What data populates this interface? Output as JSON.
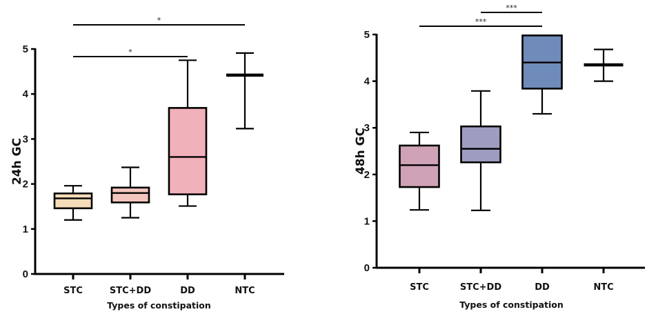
{
  "chart_data": [
    {
      "type": "box",
      "title": "",
      "xlabel": "Types of constipation",
      "ylabel": "24h GC",
      "ylim": [
        0,
        5
      ],
      "yticks": [
        "0",
        "1",
        "2",
        "3",
        "4",
        "5"
      ],
      "grid": false,
      "categories": [
        "STC",
        "STC+DD",
        "DD",
        "NTC"
      ],
      "boxes": [
        {
          "category": "STC",
          "min": 1.2,
          "q1": 1.46,
          "median": 1.68,
          "q3": 1.79,
          "max": 1.96,
          "color": "#f5dcb8"
        },
        {
          "category": "STC+DD",
          "min": 1.25,
          "q1": 1.59,
          "median": 1.8,
          "q3": 1.92,
          "max": 2.37,
          "color": "#f3c6bd"
        },
        {
          "category": "DD",
          "min": 1.51,
          "q1": 1.77,
          "median": 2.6,
          "q3": 3.69,
          "max": 4.75,
          "color": "#f1b1ba"
        },
        {
          "category": "NTC",
          "min": 3.23,
          "q1": 4.42,
          "median": 4.42,
          "q3": 4.42,
          "max": 4.91,
          "color": "#ffffff"
        }
      ],
      "significance": [
        {
          "from": "STC",
          "to": "DD",
          "label": "*",
          "level": 1
        },
        {
          "from": "STC",
          "to": "NTC",
          "label": "*",
          "level": 2
        }
      ]
    },
    {
      "type": "box",
      "title": "",
      "xlabel": "Types of constipation",
      "ylabel": "48h GC",
      "ylim": [
        0,
        5
      ],
      "yticks": [
        "0",
        "1",
        "2",
        "3",
        "4",
        "5"
      ],
      "grid": false,
      "categories": [
        "STC",
        "STC+DD",
        "DD",
        "NTC"
      ],
      "boxes": [
        {
          "category": "STC",
          "min": 1.24,
          "q1": 1.73,
          "median": 2.2,
          "q3": 2.62,
          "max": 2.9,
          "color": "#cfa2b6"
        },
        {
          "category": "STC+DD",
          "min": 1.23,
          "q1": 2.26,
          "median": 2.55,
          "q3": 3.03,
          "max": 3.79,
          "color": "#9e9dc1"
        },
        {
          "category": "DD",
          "min": 3.3,
          "q1": 3.84,
          "median": 4.4,
          "q3": 4.98,
          "max": 4.98,
          "color": "#6e8bb9"
        },
        {
          "category": "NTC",
          "min": 4.0,
          "q1": 4.35,
          "median": 4.35,
          "q3": 4.35,
          "max": 4.68,
          "color": "#ffffff"
        }
      ],
      "significance": [
        {
          "from": "STC",
          "to": "DD",
          "label": "***",
          "level": 1
        },
        {
          "from": "STC+DD",
          "to": "DD",
          "label": "***",
          "level": 2
        }
      ]
    }
  ]
}
